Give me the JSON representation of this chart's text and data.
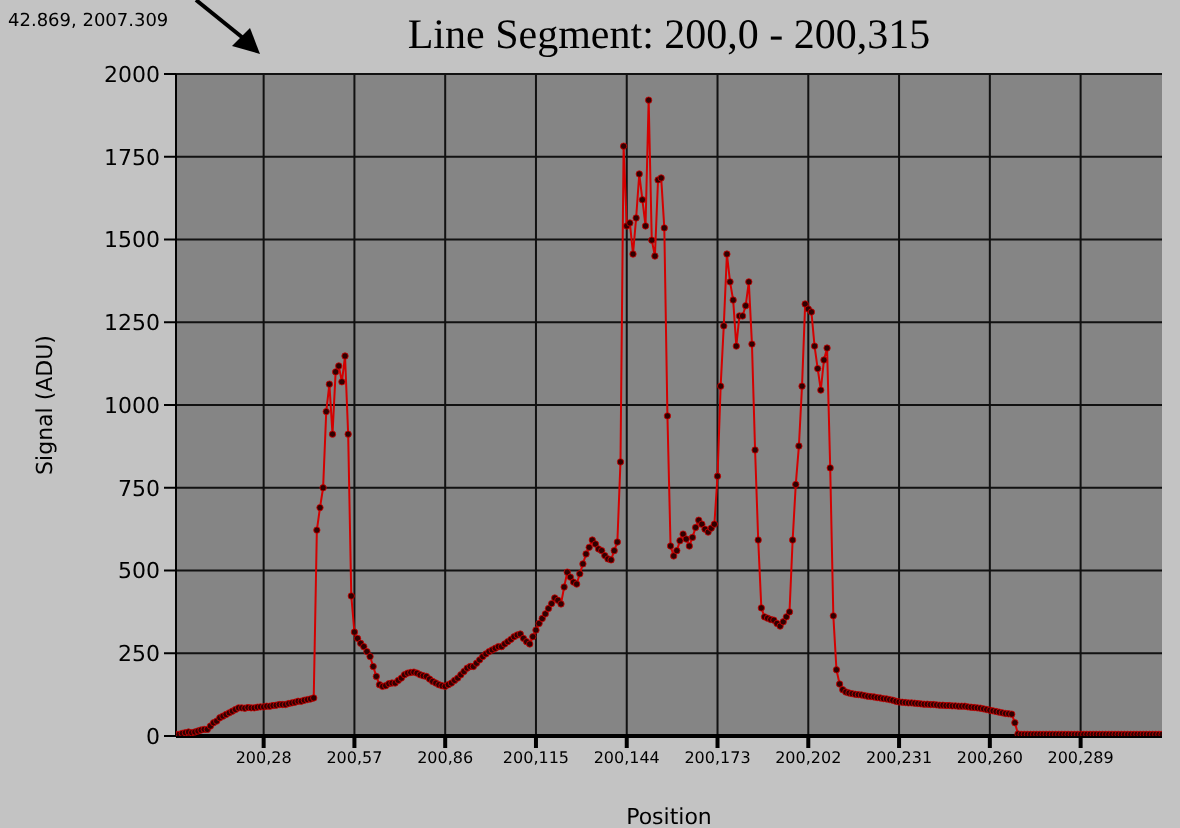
{
  "chart_data": {
    "type": "line",
    "title": "Line Segment: 200,0 - 200,315",
    "xlabel": "Position",
    "ylabel": "Signal (ADU)",
    "annotations": [
      "42.869, 2007.309"
    ],
    "categories": [
      null,
      null,
      null,
      null,
      null,
      null,
      null,
      null,
      null,
      null,
      null,
      null,
      null,
      null,
      null,
      null,
      null,
      null,
      null,
      null,
      null,
      null,
      null,
      null,
      null,
      null,
      null,
      null,
      "200,28",
      null,
      null,
      null,
      null,
      null,
      null,
      null,
      null,
      null,
      null,
      null,
      null,
      null,
      null,
      null,
      null,
      null,
      null,
      null,
      null,
      null,
      null,
      null,
      null,
      null,
      null,
      null,
      null,
      "200,57",
      null,
      null,
      null,
      null,
      null,
      null,
      null,
      null,
      null,
      null,
      null,
      null,
      null,
      null,
      null,
      null,
      null,
      null,
      null,
      null,
      null,
      null,
      null,
      null,
      null,
      null,
      null,
      null,
      "200,86",
      null,
      null,
      null,
      null,
      null,
      null,
      null,
      null,
      null,
      null,
      null,
      null,
      null,
      null,
      null,
      null,
      null,
      null,
      null,
      null,
      null,
      null,
      null,
      null,
      null,
      null,
      null,
      null,
      "200,115",
      null,
      null,
      null,
      null,
      null,
      null,
      null,
      null,
      null,
      null,
      null,
      null,
      null,
      null,
      null,
      null,
      null,
      null,
      null,
      null,
      null,
      null,
      null,
      null,
      null,
      null,
      null,
      null,
      "200,144",
      null,
      null,
      null,
      null,
      null,
      null,
      null,
      null,
      null,
      null,
      null,
      null,
      null,
      null,
      null,
      null,
      null,
      null,
      null,
      null,
      null,
      null,
      null,
      null,
      null,
      null,
      null,
      null,
      "200,173",
      null,
      null,
      null,
      null,
      null,
      null,
      null,
      null,
      null,
      null,
      null,
      null,
      null,
      null,
      null,
      null,
      null,
      null,
      null,
      null,
      null,
      null,
      null,
      null,
      null,
      null,
      null,
      null,
      "200,202",
      null,
      null,
      null,
      null,
      null,
      null,
      null,
      null,
      null,
      null,
      null,
      null,
      null,
      null,
      null,
      null,
      null,
      null,
      null,
      null,
      null,
      null,
      null,
      null,
      null,
      null,
      null,
      null,
      "200,231",
      null,
      null,
      null,
      null,
      null,
      null,
      null,
      null,
      null,
      null,
      null,
      null,
      null,
      null,
      null,
      null,
      null,
      null,
      null,
      null,
      null,
      null,
      null,
      null,
      null,
      null,
      null,
      null,
      "200,260",
      null,
      null,
      null,
      null,
      null,
      null,
      null,
      null,
      null,
      null,
      null,
      null,
      null,
      null,
      null,
      null,
      null,
      null,
      null,
      null,
      null,
      null,
      null,
      null,
      null,
      null,
      null,
      null,
      "200,289",
      null,
      null,
      null,
      null,
      null,
      null,
      null,
      null,
      null,
      null,
      null,
      null,
      null,
      null,
      null,
      null,
      null,
      null,
      null,
      null,
      null,
      null,
      null,
      null,
      null,
      null
    ],
    "series": [
      {
        "color": "#d40000",
        "values": [
          5,
          5,
          8,
          10,
          12,
          10,
          12,
          15,
          18,
          20,
          20,
          30,
          40,
          45,
          55,
          60,
          65,
          70,
          75,
          80,
          85,
          85,
          84,
          86,
          85,
          85,
          87,
          88,
          88,
          90,
          90,
          92,
          93,
          95,
          95,
          95,
          98,
          100,
          102,
          105,
          105,
          108,
          110,
          112,
          115,
          622,
          690,
          750,
          980,
          1063,
          912,
          1100,
          1118,
          1070,
          1148,
          912,
          423,
          314,
          295,
          280,
          270,
          255,
          240,
          210,
          180,
          155,
          150,
          152,
          158,
          160,
          160,
          168,
          175,
          185,
          190,
          192,
          193,
          190,
          185,
          182,
          180,
          172,
          165,
          160,
          155,
          152,
          150,
          155,
          160,
          168,
          175,
          185,
          195,
          205,
          210,
          210,
          220,
          230,
          240,
          248,
          255,
          260,
          265,
          270,
          270,
          278,
          285,
          292,
          300,
          305,
          308,
          295,
          285,
          278,
          300,
          320,
          340,
          355,
          369,
          385,
          400,
          417,
          410,
          399,
          450,
          495,
          480,
          465,
          459,
          490,
          520,
          550,
          570,
          592,
          580,
          565,
          560,
          545,
          535,
          532,
          560,
          586,
          828,
          1782,
          1541,
          1550,
          1456,
          1565,
          1698,
          1620,
          1541,
          1921,
          1498,
          1450,
          1680,
          1686,
          1535,
          967,
          574,
          544,
          560,
          590,
          610,
          595,
          574,
          600,
          630,
          652,
          640,
          625,
          616,
          628,
          640,
          785,
          1057,
          1239,
          1456,
          1372,
          1317,
          1178,
          1269,
          1269,
          1300,
          1372,
          1184,
          864,
          592,
          387,
          360,
          356,
          352,
          350,
          340,
          332,
          345,
          360,
          375,
          592,
          760,
          876,
          1057,
          1305,
          1290,
          1281,
          1178,
          1110,
          1045,
          1136,
          1172,
          810,
          363,
          200,
          157,
          140,
          133,
          130,
          128,
          126,
          125,
          124,
          122,
          120,
          119,
          118,
          116,
          115,
          113,
          112,
          110,
          108,
          105,
          103,
          102,
          101,
          100,
          100,
          99,
          98,
          97,
          96,
          96,
          95,
          95,
          94,
          93,
          93,
          92,
          92,
          91,
          91,
          90,
          90,
          90,
          88,
          87,
          86,
          85,
          84,
          82,
          80,
          78,
          76,
          74,
          72,
          70,
          68,
          67,
          66,
          40,
          6,
          5,
          5,
          5,
          5,
          5,
          5,
          5,
          5,
          5,
          5,
          5,
          5,
          5,
          5,
          5,
          5,
          5,
          5,
          5,
          5,
          5,
          5,
          5,
          5,
          5,
          5,
          5,
          5,
          5,
          5,
          5,
          5,
          5,
          5,
          5,
          5,
          5,
          5,
          5,
          5,
          5,
          5,
          5,
          5,
          5,
          5
        ]
      }
    ],
    "ylim": [
      0,
      2000
    ],
    "yticks": [
      0,
      250,
      500,
      750,
      1000,
      1250,
      1500,
      1750,
      2000
    ],
    "grid": true,
    "marker": "circle",
    "line_style": "solid"
  }
}
